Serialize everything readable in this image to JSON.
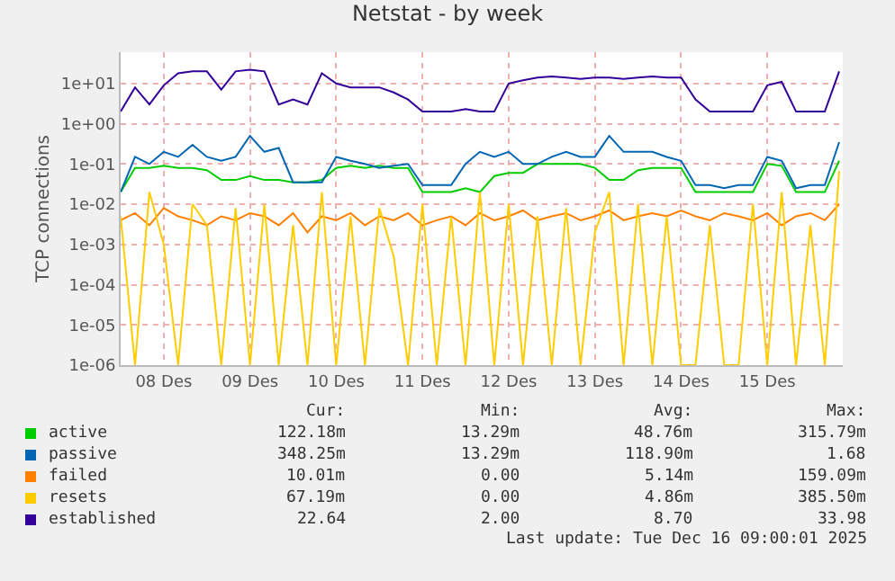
{
  "chart_data": {
    "type": "line",
    "title": "Netstat - by week",
    "ylabel": "TCP connections",
    "log": "y",
    "grid": true,
    "legend": "bottom",
    "marker": "none",
    "line_style": "solid",
    "x": [
      "2025-12-08T00:00",
      "2025-12-08T04:00",
      "2025-12-08T08:00",
      "2025-12-08T12:00",
      "2025-12-08T16:00",
      "2025-12-08T20:00",
      "2025-12-09T00:00",
      "2025-12-09T04:00",
      "2025-12-09T08:00",
      "2025-12-09T12:00",
      "2025-12-09T16:00",
      "2025-12-09T20:00",
      "2025-12-10T00:00",
      "2025-12-10T04:00",
      "2025-12-10T08:00",
      "2025-12-10T12:00",
      "2025-12-10T16:00",
      "2025-12-10T20:00",
      "2025-12-11T00:00",
      "2025-12-11T04:00",
      "2025-12-11T08:00",
      "2025-12-11T12:00",
      "2025-12-11T16:00",
      "2025-12-11T20:00",
      "2025-12-12T00:00",
      "2025-12-12T04:00",
      "2025-12-12T08:00",
      "2025-12-12T12:00",
      "2025-12-12T16:00",
      "2025-12-12T20:00",
      "2025-12-13T00:00",
      "2025-12-13T04:00",
      "2025-12-13T08:00",
      "2025-12-13T12:00",
      "2025-12-13T16:00",
      "2025-12-13T20:00",
      "2025-12-14T00:00",
      "2025-12-14T04:00",
      "2025-12-14T08:00",
      "2025-12-14T12:00",
      "2025-12-14T16:00",
      "2025-12-14T20:00",
      "2025-12-15T00:00",
      "2025-12-15T04:00",
      "2025-12-15T08:00",
      "2025-12-15T12:00",
      "2025-12-15T16:00",
      "2025-12-15T20:00",
      "2025-12-16T00:00",
      "2025-12-16T04:00",
      "2025-12-16T08:00"
    ],
    "xlim": [
      "2025-12-08T00:00",
      "2025-12-16T09:00"
    ],
    "xticks": [
      {
        "value": "2025-12-08T12:00",
        "label": "08 Des"
      },
      {
        "value": "2025-12-09T12:00",
        "label": "09 Des"
      },
      {
        "value": "2025-12-10T12:00",
        "label": "10 Des"
      },
      {
        "value": "2025-12-11T12:00",
        "label": "11 Des"
      },
      {
        "value": "2025-12-12T12:00",
        "label": "12 Des"
      },
      {
        "value": "2025-12-13T12:00",
        "label": "13 Des"
      },
      {
        "value": "2025-12-14T12:00",
        "label": "14 Des"
      },
      {
        "value": "2025-12-15T12:00",
        "label": "15 Des"
      }
    ],
    "ylim": [
      1e-06,
      60
    ],
    "yticks": [
      {
        "value": 1e-06,
        "label": "1e-06"
      },
      {
        "value": 1e-05,
        "label": "1e-05"
      },
      {
        "value": 0.0001,
        "label": "1e-04"
      },
      {
        "value": 0.001,
        "label": "1e-03"
      },
      {
        "value": 0.01,
        "label": "1e-02"
      },
      {
        "value": 0.1,
        "label": "1e-01"
      },
      {
        "value": 1,
        "label": "1e+00"
      },
      {
        "value": 10,
        "label": "1e+01"
      }
    ],
    "series": [
      {
        "name": "active",
        "color": "#00cc00",
        "values": [
          0.02,
          0.08,
          0.08,
          0.09,
          0.08,
          0.08,
          0.07,
          0.04,
          0.04,
          0.05,
          0.04,
          0.04,
          0.035,
          0.035,
          0.04,
          0.08,
          0.09,
          0.08,
          0.09,
          0.08,
          0.08,
          0.02,
          0.02,
          0.02,
          0.025,
          0.02,
          0.05,
          0.06,
          0.06,
          0.1,
          0.1,
          0.1,
          0.1,
          0.08,
          0.04,
          0.04,
          0.07,
          0.08,
          0.08,
          0.08,
          0.02,
          0.02,
          0.02,
          0.02,
          0.02,
          0.1,
          0.09,
          0.02,
          0.02,
          0.02,
          0.12
        ]
      },
      {
        "name": "passive",
        "color": "#0066b3",
        "values": [
          0.02,
          0.15,
          0.1,
          0.2,
          0.15,
          0.3,
          0.15,
          0.12,
          0.15,
          0.5,
          0.2,
          0.25,
          0.035,
          0.035,
          0.035,
          0.15,
          0.12,
          0.1,
          0.08,
          0.09,
          0.1,
          0.03,
          0.03,
          0.03,
          0.1,
          0.2,
          0.15,
          0.2,
          0.1,
          0.1,
          0.15,
          0.2,
          0.15,
          0.15,
          0.5,
          0.2,
          0.2,
          0.2,
          0.15,
          0.12,
          0.03,
          0.03,
          0.025,
          0.03,
          0.03,
          0.15,
          0.12,
          0.025,
          0.03,
          0.03,
          0.35
        ]
      },
      {
        "name": "failed",
        "color": "#ff8000",
        "values": [
          0.004,
          0.006,
          0.003,
          0.008,
          0.005,
          0.004,
          0.003,
          0.005,
          0.004,
          0.006,
          0.005,
          0.003,
          0.006,
          0.002,
          0.005,
          0.004,
          0.006,
          0.003,
          0.005,
          0.004,
          0.006,
          0.003,
          0.004,
          0.005,
          0.003,
          0.006,
          0.004,
          0.005,
          0.007,
          0.004,
          0.005,
          0.006,
          0.004,
          0.005,
          0.007,
          0.004,
          0.005,
          0.006,
          0.005,
          0.007,
          0.005,
          0.004,
          0.006,
          0.005,
          0.004,
          0.006,
          0.003,
          0.005,
          0.006,
          0.004,
          0.01
        ]
      },
      {
        "name": "resets",
        "color": "#ffcc00",
        "values": [
          0.005,
          1e-06,
          0.02,
          0.001,
          1e-06,
          0.01,
          0.003,
          1e-06,
          0.008,
          1e-06,
          0.01,
          1e-06,
          0.003,
          1e-06,
          0.02,
          1e-06,
          0.005,
          1e-06,
          0.008,
          0.0005,
          1e-06,
          0.01,
          1e-06,
          0.005,
          1e-06,
          0.02,
          1e-06,
          0.01,
          1e-06,
          0.005,
          1e-06,
          0.008,
          1e-06,
          0.002,
          0.02,
          1e-06,
          0.01,
          1e-06,
          0.005,
          1e-06,
          1e-06,
          0.003,
          1e-06,
          1e-06,
          0.01,
          1e-06,
          0.02,
          1e-06,
          0.003,
          1e-06,
          0.067
        ]
      },
      {
        "name": "established",
        "color": "#330099",
        "values": [
          2,
          8,
          3,
          9,
          18,
          20,
          20,
          7,
          20,
          22,
          20,
          3,
          4,
          3,
          18,
          10,
          8,
          8,
          8,
          6,
          4,
          2,
          2,
          2,
          2.3,
          2,
          2,
          10,
          12,
          14,
          15,
          14,
          13,
          14,
          14,
          13,
          14,
          15,
          14,
          14,
          4,
          2,
          2,
          2,
          2,
          9,
          11,
          2,
          2,
          2,
          20
        ]
      }
    ],
    "annotations": [
      "Cur:",
      "Min:",
      "Avg:",
      "Max:",
      "122.18m",
      "13.29m",
      "48.76m",
      "315.79m",
      "348.25m",
      "13.29m",
      "118.90m",
      "1.68",
      "10.01m",
      "0.00",
      "5.14m",
      "159.09m",
      "67.19m",
      "0.00",
      "4.86m",
      "385.50m",
      "22.64",
      "2.00",
      "8.70",
      "33.98",
      "Last update: Tue Dec 16 09:00:01 2025"
    ]
  }
}
